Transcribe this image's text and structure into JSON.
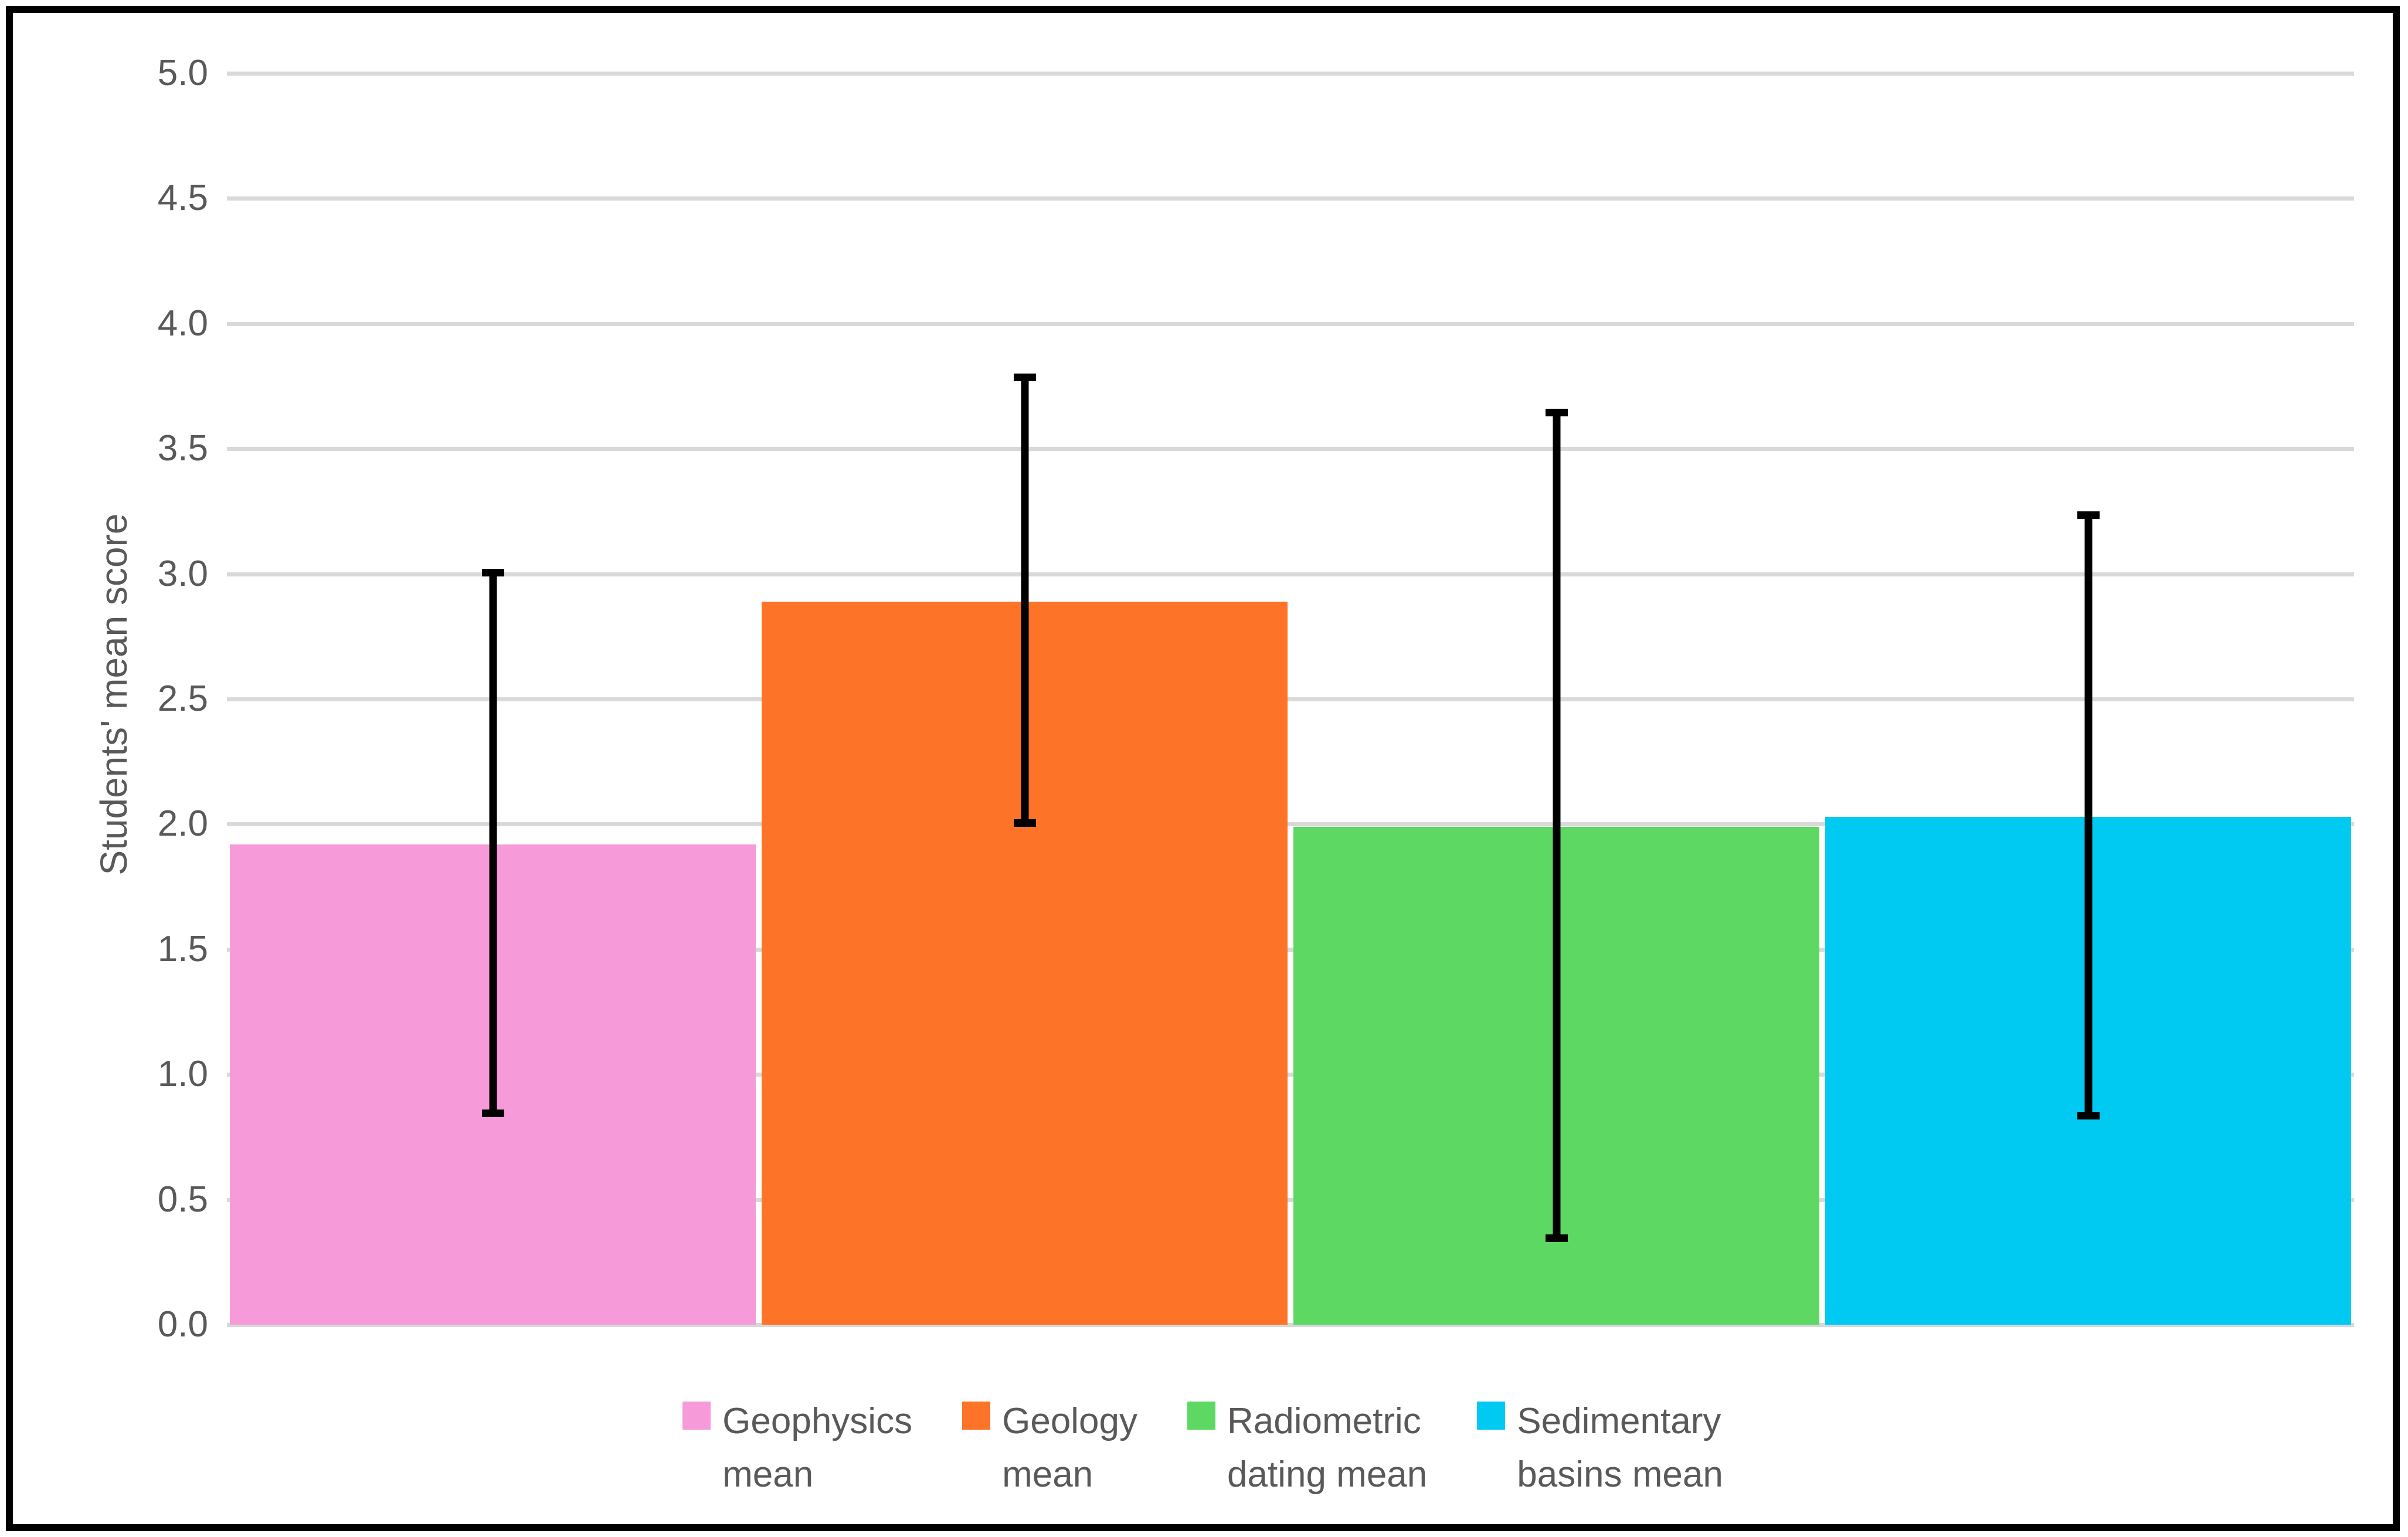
{
  "chart_data": {
    "type": "bar",
    "title": "",
    "ylabel": "Students' mean score",
    "xlabel": "",
    "ylim": [
      0,
      5
    ],
    "yticks": [
      "0.0",
      "0.5",
      "1.0",
      "1.5",
      "2.0",
      "2.5",
      "3.0",
      "3.5",
      "4.0",
      "4.5",
      "5.0"
    ],
    "grid": true,
    "legend_position": "bottom",
    "categories": [
      "Geophysics mean",
      "Geology mean",
      "Radiometric dating mean",
      "Sedimentary basins mean"
    ],
    "legend_lines": [
      [
        "Geophysics",
        "mean"
      ],
      [
        "Geology",
        "mean"
      ],
      [
        "Radiometric",
        "dating mean"
      ],
      [
        "Sedimentary",
        "basins mean"
      ]
    ],
    "bar_colors": [
      "#F79AD9",
      "#FD7328",
      "#5CD863",
      "#00CAF2"
    ],
    "values": [
      1.92,
      2.89,
      1.99,
      2.03
    ],
    "error_low": [
      0.83,
      1.99,
      0.33,
      0.82
    ],
    "error_high": [
      3.02,
      3.8,
      3.66,
      3.25
    ]
  },
  "colors": {
    "gridline": "#D9D9D9",
    "axis_text": "#595959",
    "error_bar": "#000000",
    "frame_border": "#000000",
    "background": "#FFFFFF"
  }
}
